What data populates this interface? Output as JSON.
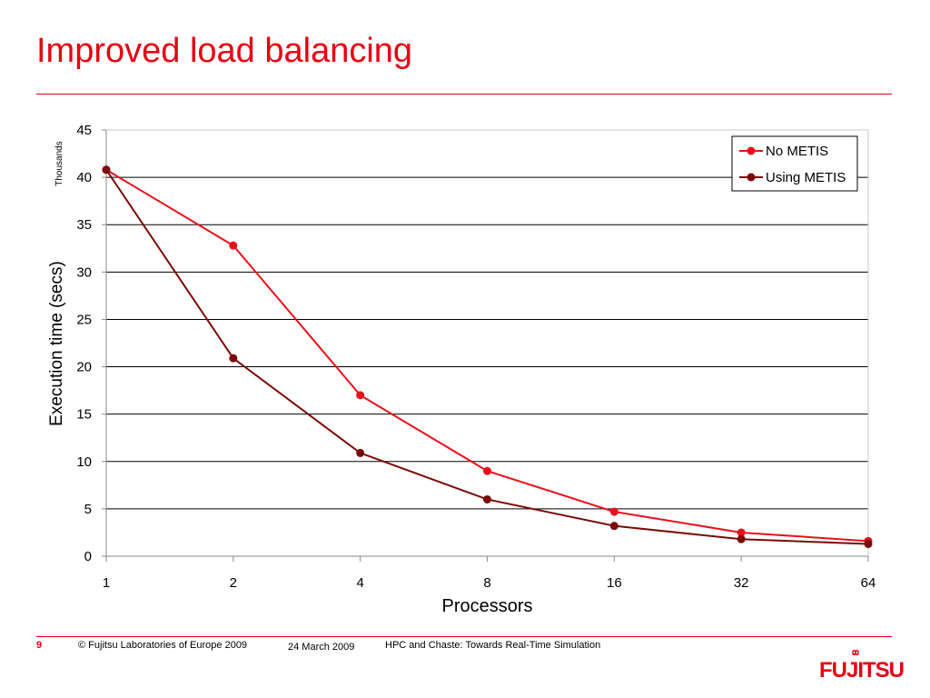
{
  "slide": {
    "title": "Improved load balancing",
    "page_number": "9",
    "copyright": "© Fujitsu Laboratories of Europe 2009",
    "date": "24 March 2009",
    "presentation_title": "HPC and Chaste: Towards Real-Time Simulation",
    "logo_text": "FUJITSU"
  },
  "colors": {
    "accent": "#e60012",
    "no_metis": "#e8101a",
    "using_metis": "#7b0a0a"
  },
  "chart_data": {
    "type": "line",
    "xlabel": "Processors",
    "ylabel": "Execution time (secs)",
    "y_unit_label": "Thousands",
    "categories": [
      "1",
      "2",
      "4",
      "8",
      "16",
      "32",
      "64"
    ],
    "ylim": [
      0,
      45
    ],
    "yticks": [
      "0",
      "5",
      "10",
      "15",
      "20",
      "25",
      "30",
      "35",
      "40",
      "45"
    ],
    "grid": true,
    "legend_position": "top-right",
    "series": [
      {
        "name": "No METIS",
        "values": [
          40.8,
          32.8,
          17.0,
          9.0,
          4.7,
          2.5,
          1.6
        ]
      },
      {
        "name": "Using METIS",
        "values": [
          40.8,
          20.9,
          10.9,
          6.0,
          3.2,
          1.8,
          1.3
        ]
      }
    ]
  }
}
